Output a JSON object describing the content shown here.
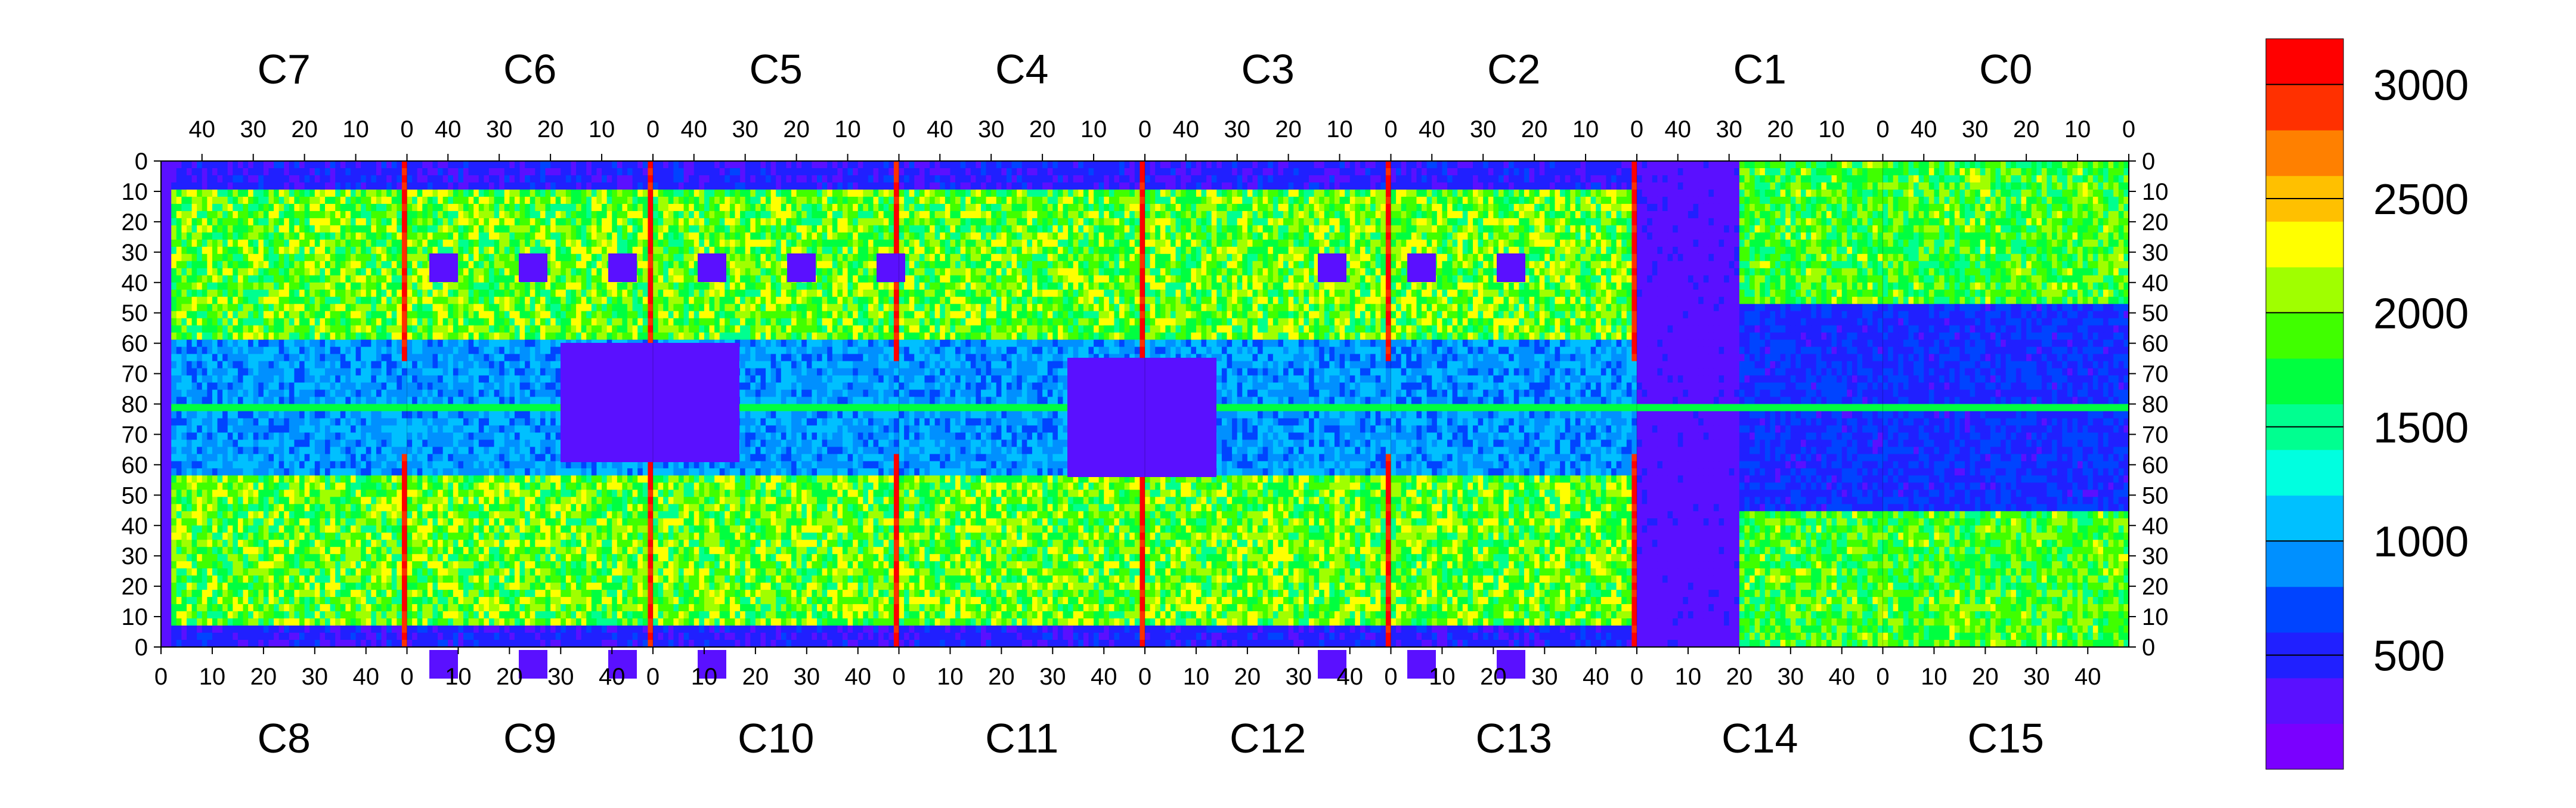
{
  "chart_data": {
    "type": "heatmap",
    "top_chips": [
      "C7",
      "C6",
      "C5",
      "C4",
      "C3",
      "C2",
      "C1",
      "C0"
    ],
    "bottom_chips": [
      "C8",
      "C9",
      "C10",
      "C11",
      "C12",
      "C13",
      "C14",
      "C15"
    ],
    "top_x_ticks": [
      "40",
      "30",
      "20",
      "10",
      "0"
    ],
    "bottom_x_ticks": [
      "0",
      "10",
      "20",
      "30",
      "40"
    ],
    "y_ticks_left": [
      "0",
      "10",
      "20",
      "30",
      "40",
      "50",
      "60",
      "70",
      "80",
      "70",
      "60",
      "50",
      "40",
      "30",
      "20",
      "10",
      "0"
    ],
    "colorbar_ticks": [
      500,
      1000,
      1500,
      2000,
      2500,
      3000
    ],
    "colorbar_range": [
      0,
      3200
    ]
  }
}
